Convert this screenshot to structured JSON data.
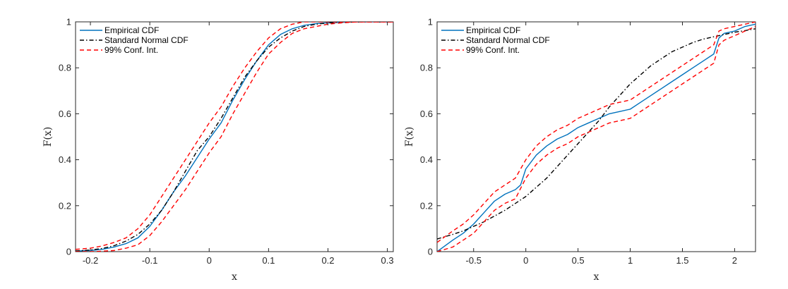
{
  "chart_data": [
    {
      "type": "line",
      "xlabel": "x",
      "ylabel": "F(x)",
      "xlim": [
        -0.225,
        0.31
      ],
      "ylim": [
        0,
        1
      ],
      "xticks": [
        -0.2,
        -0.1,
        0,
        0.1,
        0.2,
        0.3
      ],
      "xtick_labels": [
        "-0.2",
        "-0.1",
        "0",
        "0.1",
        "0.2",
        "0.3"
      ],
      "yticks": [
        0,
        0.2,
        0.4,
        0.6,
        0.8,
        1
      ],
      "ytick_labels": [
        "0",
        "0.2",
        "0.4",
        "0.6",
        "0.8",
        "1"
      ],
      "grid": false,
      "legend_position": "top-left",
      "series": [
        {
          "name": "Empirical CDF",
          "color": "#0072BD",
          "dash": "solid",
          "x": [
            -0.225,
            -0.2,
            -0.18,
            -0.16,
            -0.14,
            -0.12,
            -0.1,
            -0.08,
            -0.06,
            -0.04,
            -0.02,
            0,
            0.02,
            0.04,
            0.06,
            0.08,
            0.1,
            0.12,
            0.14,
            0.16,
            0.18,
            0.2,
            0.22,
            0.25,
            0.31
          ],
          "y": [
            0.003,
            0.005,
            0.01,
            0.02,
            0.035,
            0.06,
            0.11,
            0.18,
            0.26,
            0.33,
            0.41,
            0.49,
            0.56,
            0.66,
            0.75,
            0.83,
            0.9,
            0.945,
            0.97,
            0.985,
            0.992,
            0.996,
            0.998,
            1,
            1
          ]
        },
        {
          "name": "Standard Normal CDF",
          "color": "#000000",
          "dash": "dashdot",
          "x": [
            -0.225,
            -0.2,
            -0.18,
            -0.16,
            -0.14,
            -0.12,
            -0.1,
            -0.08,
            -0.06,
            -0.04,
            -0.02,
            0,
            0.02,
            0.04,
            0.06,
            0.08,
            0.1,
            0.12,
            0.14,
            0.16,
            0.18,
            0.2,
            0.22,
            0.25,
            0.31
          ],
          "y": [
            0.003,
            0.007,
            0.014,
            0.026,
            0.046,
            0.075,
            0.12,
            0.18,
            0.26,
            0.35,
            0.44,
            0.5,
            0.58,
            0.67,
            0.76,
            0.83,
            0.89,
            0.93,
            0.96,
            0.98,
            0.99,
            0.995,
            0.998,
            1,
            1
          ]
        },
        {
          "name": "99% Conf. Int.",
          "color": "#FF0000",
          "dash": "dashed",
          "x": [
            -0.225,
            -0.2,
            -0.18,
            -0.16,
            -0.14,
            -0.12,
            -0.1,
            -0.08,
            -0.06,
            -0.04,
            -0.02,
            0,
            0.02,
            0.04,
            0.06,
            0.08,
            0.1,
            0.12,
            0.14,
            0.16,
            0.18,
            0.2,
            0.22,
            0.25,
            0.31
          ],
          "y": [
            0.01,
            0.015,
            0.025,
            0.04,
            0.06,
            0.1,
            0.16,
            0.24,
            0.32,
            0.4,
            0.48,
            0.56,
            0.63,
            0.72,
            0.8,
            0.87,
            0.93,
            0.97,
            0.99,
            1,
            1,
            1,
            1,
            1,
            1
          ]
        },
        {
          "name": "",
          "color": "#FF0000",
          "dash": "dashed",
          "x": [
            -0.225,
            -0.2,
            -0.18,
            -0.16,
            -0.14,
            -0.12,
            -0.1,
            -0.08,
            -0.06,
            -0.04,
            -0.02,
            0,
            0.02,
            0.04,
            0.06,
            0.08,
            0.1,
            0.12,
            0.14,
            0.16,
            0.18,
            0.2,
            0.22,
            0.25,
            0.31
          ],
          "y": [
            0,
            0,
            0.002,
            0.005,
            0.015,
            0.03,
            0.07,
            0.13,
            0.2,
            0.27,
            0.35,
            0.43,
            0.5,
            0.6,
            0.69,
            0.78,
            0.86,
            0.91,
            0.95,
            0.97,
            0.98,
            0.99,
            0.995,
            1,
            1
          ]
        }
      ]
    },
    {
      "type": "line",
      "xlabel": "x",
      "ylabel": "F(x)",
      "xlim": [
        -0.85,
        2.2
      ],
      "ylim": [
        0,
        1
      ],
      "xticks": [
        -0.5,
        0,
        0.5,
        1,
        1.5,
        2
      ],
      "xtick_labels": [
        "-0.5",
        "0",
        "0.5",
        "1",
        "1.5",
        "2"
      ],
      "yticks": [
        0,
        0.2,
        0.4,
        0.6,
        0.8,
        1
      ],
      "ytick_labels": [
        "0",
        "0.2",
        "0.4",
        "0.6",
        "0.8",
        "1"
      ],
      "grid": false,
      "legend_position": "top-left",
      "series": [
        {
          "name": "Empirical CDF",
          "color": "#0072BD",
          "dash": "solid",
          "x": [
            -0.85,
            -0.7,
            -0.6,
            -0.5,
            -0.4,
            -0.3,
            -0.2,
            -0.1,
            -0.05,
            0,
            0.1,
            0.2,
            0.3,
            0.4,
            0.5,
            0.6,
            0.7,
            0.8,
            0.9,
            1,
            1.1,
            1.2,
            1.3,
            1.4,
            1.5,
            1.6,
            1.7,
            1.8,
            1.85,
            1.9,
            2,
            2.1,
            2.2
          ],
          "y": [
            0,
            0.05,
            0.08,
            0.12,
            0.17,
            0.22,
            0.25,
            0.27,
            0.29,
            0.36,
            0.42,
            0.46,
            0.49,
            0.51,
            0.54,
            0.56,
            0.58,
            0.6,
            0.61,
            0.62,
            0.65,
            0.68,
            0.71,
            0.74,
            0.77,
            0.8,
            0.83,
            0.86,
            0.93,
            0.95,
            0.96,
            0.98,
            0.99
          ]
        },
        {
          "name": "Standard Normal CDF",
          "color": "#000000",
          "dash": "dashdot",
          "x": [
            -0.85,
            -0.7,
            -0.6,
            -0.5,
            -0.4,
            -0.3,
            -0.2,
            -0.1,
            0,
            0.1,
            0.2,
            0.3,
            0.4,
            0.5,
            0.6,
            0.7,
            0.8,
            0.9,
            1,
            1.1,
            1.2,
            1.3,
            1.4,
            1.5,
            1.6,
            1.7,
            1.8,
            1.9,
            2,
            2.1,
            2.2
          ],
          "y": [
            0.055,
            0.075,
            0.09,
            0.11,
            0.13,
            0.155,
            0.18,
            0.21,
            0.24,
            0.28,
            0.32,
            0.37,
            0.42,
            0.47,
            0.52,
            0.57,
            0.63,
            0.68,
            0.73,
            0.77,
            0.81,
            0.84,
            0.87,
            0.89,
            0.91,
            0.925,
            0.935,
            0.945,
            0.955,
            0.962,
            0.97
          ]
        },
        {
          "name": "99% Conf. Int.",
          "color": "#FF0000",
          "dash": "dashed",
          "x": [
            -0.85,
            -0.7,
            -0.6,
            -0.5,
            -0.4,
            -0.3,
            -0.2,
            -0.1,
            0,
            0.1,
            0.2,
            0.3,
            0.4,
            0.5,
            0.6,
            0.7,
            0.8,
            0.9,
            1,
            1.1,
            1.2,
            1.3,
            1.4,
            1.5,
            1.6,
            1.7,
            1.8,
            1.85,
            1.9,
            2,
            2.1,
            2.2
          ],
          "y": [
            0.04,
            0.09,
            0.12,
            0.16,
            0.21,
            0.26,
            0.29,
            0.32,
            0.4,
            0.46,
            0.5,
            0.53,
            0.55,
            0.58,
            0.6,
            0.62,
            0.64,
            0.65,
            0.66,
            0.69,
            0.72,
            0.75,
            0.78,
            0.81,
            0.84,
            0.87,
            0.9,
            0.96,
            0.97,
            0.98,
            0.99,
            1
          ]
        },
        {
          "name": "",
          "color": "#FF0000",
          "dash": "dashed",
          "x": [
            -0.85,
            -0.7,
            -0.6,
            -0.5,
            -0.4,
            -0.3,
            -0.2,
            -0.1,
            0,
            0.1,
            0.2,
            0.3,
            0.4,
            0.5,
            0.6,
            0.7,
            0.8,
            0.9,
            1,
            1.1,
            1.2,
            1.3,
            1.4,
            1.5,
            1.6,
            1.7,
            1.8,
            1.85,
            1.9,
            2,
            2.1,
            2.2
          ],
          "y": [
            0,
            0.02,
            0.05,
            0.08,
            0.13,
            0.18,
            0.21,
            0.23,
            0.32,
            0.38,
            0.42,
            0.45,
            0.47,
            0.5,
            0.52,
            0.54,
            0.56,
            0.57,
            0.58,
            0.61,
            0.64,
            0.67,
            0.7,
            0.73,
            0.76,
            0.79,
            0.82,
            0.9,
            0.92,
            0.94,
            0.96,
            0.98
          ]
        }
      ]
    }
  ]
}
